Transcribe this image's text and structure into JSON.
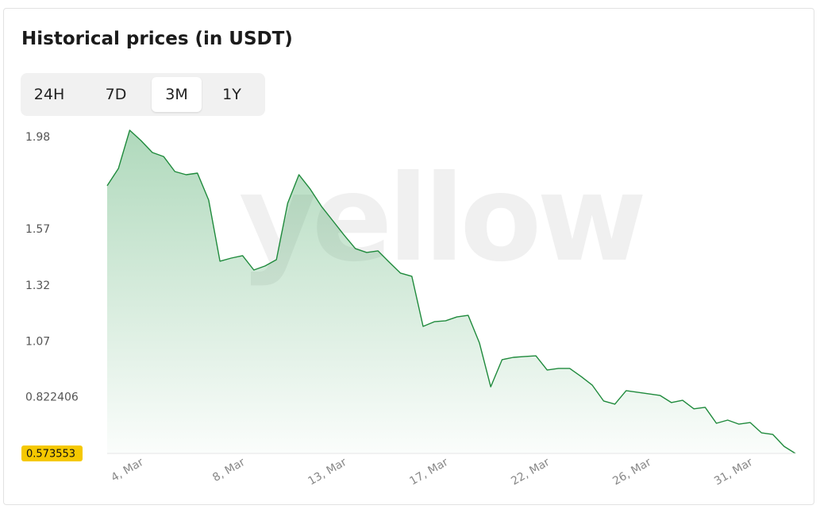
{
  "header": {
    "title": "Historical prices (in USDT)"
  },
  "tabs": [
    "24H",
    "7D",
    "3M",
    "1Y"
  ],
  "active_tab": 2,
  "watermark": "yellow",
  "chart_data": {
    "type": "area",
    "categories": [
      null,
      null,
      null,
      "4, Mar",
      null,
      null,
      null,
      null,
      null,
      null,
      null,
      null,
      "8, Mar",
      null,
      null,
      null,
      null,
      null,
      null,
      null,
      null,
      "13, Mar",
      null,
      null,
      null,
      null,
      null,
      null,
      null,
      null,
      "17, Mar",
      null,
      null,
      null,
      null,
      null,
      null,
      null,
      null,
      "22, Mar",
      null,
      null,
      null,
      null,
      null,
      null,
      null,
      null,
      "26, Mar",
      null,
      null,
      null,
      null,
      null,
      null,
      null,
      null,
      "31, Mar",
      null,
      null,
      null,
      null
    ],
    "values": [
      1.765,
      1.842,
      2.012,
      1.966,
      1.913,
      1.895,
      1.828,
      1.814,
      1.821,
      1.701,
      1.429,
      1.443,
      1.454,
      1.39,
      1.408,
      1.436,
      1.687,
      1.814,
      1.75,
      1.673,
      1.609,
      1.545,
      1.485,
      1.468,
      1.475,
      1.425,
      1.376,
      1.362,
      1.139,
      1.16,
      1.164,
      1.181,
      1.188,
      1.065,
      0.87,
      0.991,
      1.001,
      1.005,
      1.008,
      0.945,
      0.952,
      0.952,
      0.916,
      0.877,
      0.807,
      0.793,
      0.853,
      0.846,
      0.839,
      0.832,
      0.8,
      0.81,
      0.772,
      0.779,
      0.708,
      0.722,
      0.704,
      0.711,
      0.665,
      0.658,
      0.605,
      0.573553
    ],
    "color": "#1f8a3c",
    "ylim": [
      0.573553,
      2.026
    ],
    "yticks": [
      1.98,
      1.57,
      1.32,
      1.07,
      0.822406
    ],
    "current_price": 0.573553
  }
}
